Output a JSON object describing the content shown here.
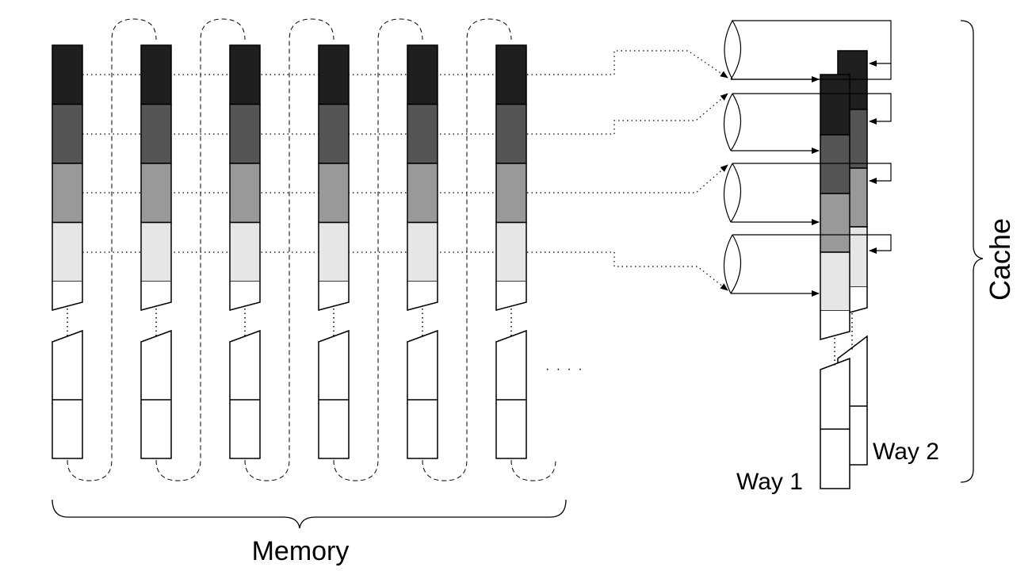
{
  "labels": {
    "memory": "Memory",
    "cache": "Cache",
    "way1": "Way 1",
    "way2": "Way 2",
    "ellipsis": "· · · ·"
  },
  "colors": {
    "set0": "#1e1e1e",
    "set1": "#555555",
    "set2": "#999999",
    "set3": "#e6e6e6",
    "empty": "#ffffff",
    "stroke": "#000000"
  },
  "memory": {
    "columns": 6,
    "colored_rows": [
      "set0",
      "set1",
      "set2",
      "set3"
    ]
  },
  "cache": {
    "ways": 2,
    "sets": 4
  }
}
